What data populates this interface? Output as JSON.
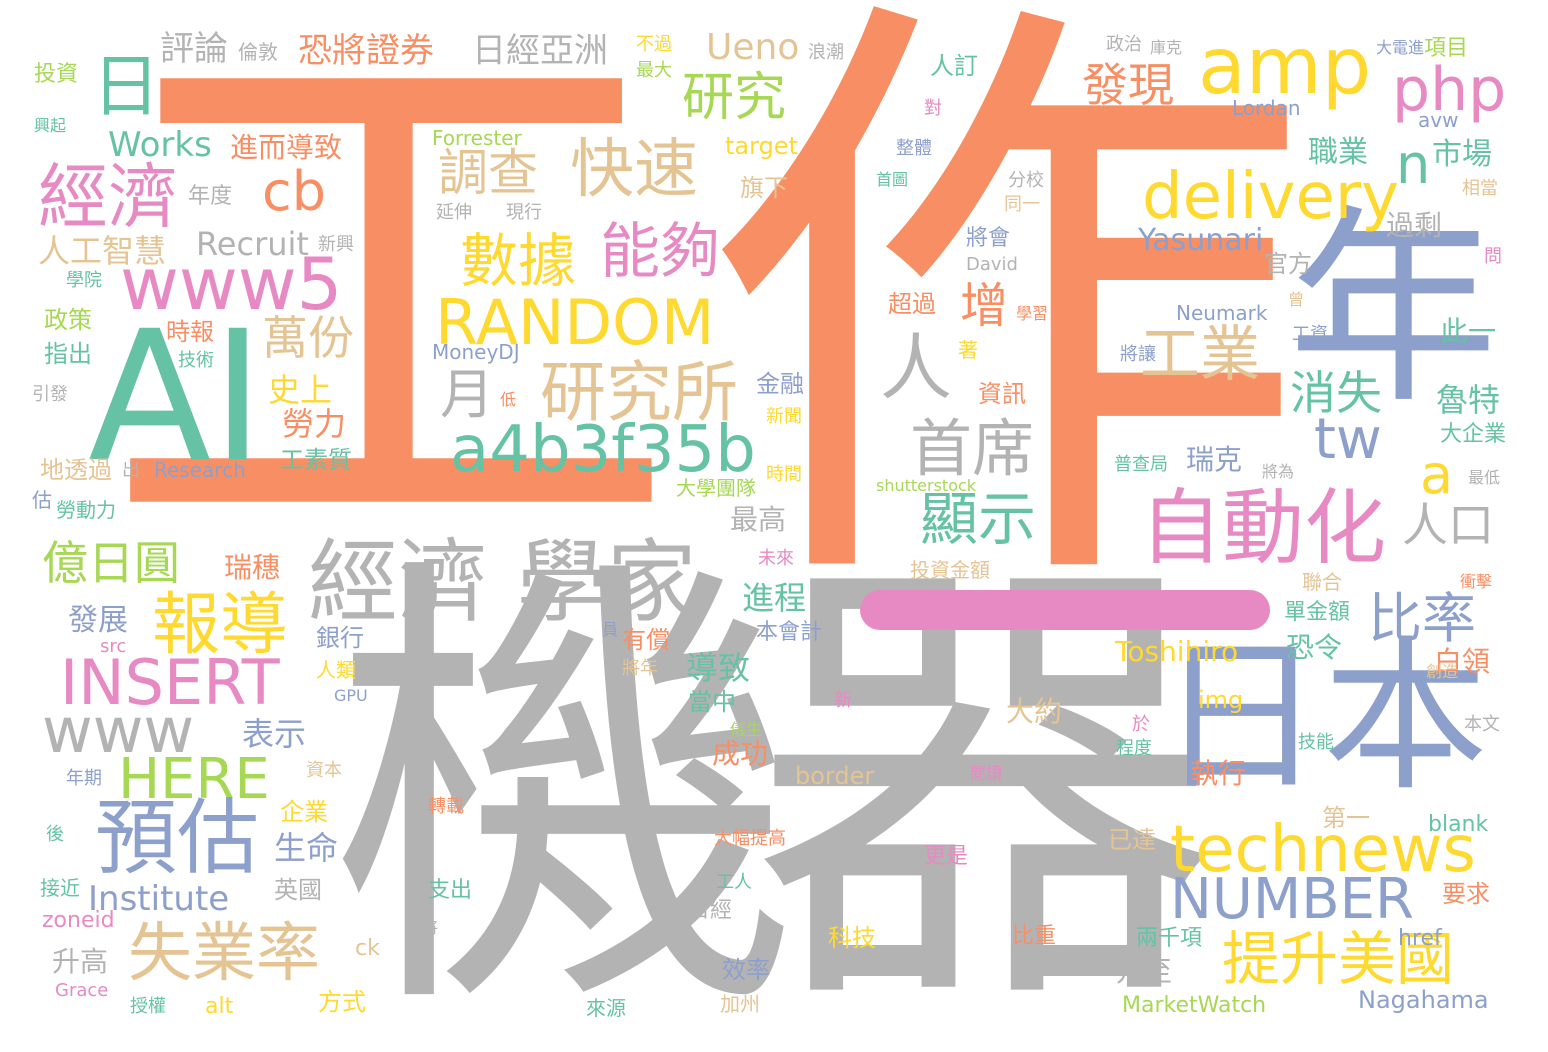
{
  "palette": {
    "orange": "#f88f64",
    "gray": "#b3b3b3",
    "blue": "#8da0cb",
    "green": "#66c2a5",
    "pink": "#e78ac3",
    "lime": "#a6d854",
    "yellow": "#ffd92f",
    "tan": "#e5c494"
  },
  "words": [
    {
      "text": "工",
      "color": "#f88f64"
    },
    {
      "text": "作",
      "color": "#f88f64"
    },
    {
      "text": "機",
      "color": "#b3b3b3"
    },
    {
      "text": "器",
      "color": "#b3b3b3"
    },
    {
      "text": "AI",
      "color": "#66c2a5"
    },
    {
      "text": "年",
      "color": "#8da0cb"
    },
    {
      "text": "日本",
      "color": "#8da0cb"
    },
    {
      "text": "amp",
      "color": "#ffd92f"
    },
    {
      "text": "php",
      "color": "#e78ac3"
    },
    {
      "text": "delivery",
      "color": "#ffd92f"
    },
    {
      "text": "經濟",
      "color": "#e78ac3"
    },
    {
      "text": "www5",
      "color": "#e78ac3"
    },
    {
      "text": "cb",
      "color": "#f88f64"
    },
    {
      "text": "日",
      "color": "#66c2a5"
    },
    {
      "text": "經濟 學家",
      "color": "#b3b3b3"
    },
    {
      "text": "研究所",
      "color": "#e5c494"
    },
    {
      "text": "a4b3f35b",
      "color": "#66c2a5"
    },
    {
      "text": "RANDOM",
      "color": "#ffd92f"
    },
    {
      "text": "自動化",
      "color": "#e78ac3"
    },
    {
      "text": "technews",
      "color": "#ffd92f"
    },
    {
      "text": "INSERT",
      "color": "#e78ac3"
    },
    {
      "text": "www",
      "color": "#b3b3b3"
    },
    {
      "text": "HERE",
      "color": "#a6d854"
    },
    {
      "text": "預估",
      "color": "#8da0cb"
    },
    {
      "text": "報導",
      "color": "#ffd92f"
    },
    {
      "text": "失業率",
      "color": "#e5c494"
    },
    {
      "text": "NUMBER",
      "color": "#8da0cb"
    },
    {
      "text": "提升美國",
      "color": "#ffd92f"
    },
    {
      "text": "快速",
      "color": "#e5c494"
    },
    {
      "text": "能夠",
      "color": "#e78ac3"
    },
    {
      "text": "數據",
      "color": "#ffd92f"
    },
    {
      "text": "研究",
      "color": "#a6d854"
    },
    {
      "text": "調查",
      "color": "#e5c494"
    },
    {
      "text": "首席",
      "color": "#b3b3b3"
    },
    {
      "text": "人",
      "color": "#b3b3b3"
    },
    {
      "text": "顯示",
      "color": "#66c2a5"
    },
    {
      "text": "工業",
      "color": "#e5c494"
    },
    {
      "text": "比率",
      "color": "#8da0cb"
    },
    {
      "text": "tw",
      "color": "#8da0cb"
    },
    {
      "text": "a",
      "color": "#ffd92f"
    },
    {
      "text": "n",
      "color": "#66c2a5"
    },
    {
      "text": "人口",
      "color": "#b3b3b3"
    },
    {
      "text": "發現",
      "color": "#f88f64"
    },
    {
      "text": "增",
      "color": "#f88f64"
    },
    {
      "text": "萬份",
      "color": "#e5c494"
    },
    {
      "text": "月",
      "color": "#b3b3b3"
    },
    {
      "text": "Ueno",
      "color": "#e5c494"
    },
    {
      "text": "消失",
      "color": "#66c2a5"
    },
    {
      "text": "億日圓",
      "color": "#a6d854"
    },
    {
      "text": "Institute",
      "color": "#8da0cb"
    },
    {
      "text": "Works",
      "color": "#66c2a5"
    },
    {
      "text": "Recruit",
      "color": "#b3b3b3"
    },
    {
      "text": "Yasunari",
      "color": "#8da0cb"
    },
    {
      "text": "Toshihiro",
      "color": "#ffd92f"
    },
    {
      "text": "Nagahama",
      "color": "#8da0cb"
    },
    {
      "text": "MarketWatch",
      "color": "#a6d854"
    },
    {
      "text": "Research",
      "color": "#8da0cb"
    },
    {
      "text": "MoneyDJ",
      "color": "#8da0cb"
    },
    {
      "text": "Forrester",
      "color": "#a6d854"
    },
    {
      "text": "target",
      "color": "#ffd92f"
    },
    {
      "text": "shutterstock",
      "color": "#a6d854"
    },
    {
      "text": "Neumark",
      "color": "#8da0cb"
    },
    {
      "text": "David",
      "color": "#b3b3b3"
    },
    {
      "text": "Lordan",
      "color": "#8da0cb"
    },
    {
      "text": "avw",
      "color": "#8da0cb"
    },
    {
      "text": "img",
      "color": "#ffd92f"
    },
    {
      "text": "href",
      "color": "#8da0cb"
    },
    {
      "text": "blank",
      "color": "#66c2a5"
    },
    {
      "text": "border",
      "color": "#e5c494"
    },
    {
      "text": "zoneid",
      "color": "#e78ac3"
    },
    {
      "text": "Grace",
      "color": "#e78ac3"
    },
    {
      "text": "alt",
      "color": "#ffd92f"
    },
    {
      "text": "ck",
      "color": "#e5c494"
    },
    {
      "text": "src",
      "color": "#e78ac3"
    },
    {
      "text": "GPU",
      "color": "#8da0cb"
    },
    {
      "text": "評論",
      "color": "#b3b3b3"
    },
    {
      "text": "恐將證券",
      "color": "#f88f64"
    },
    {
      "text": "日經亞洲",
      "color": "#b3b3b3"
    },
    {
      "text": "倫敦",
      "color": "#b3b3b3"
    },
    {
      "text": "投資",
      "color": "#a6d854"
    },
    {
      "text": "興起",
      "color": "#66c2a5"
    },
    {
      "text": "進而導致",
      "color": "#f88f64"
    },
    {
      "text": "年度",
      "color": "#b3b3b3"
    },
    {
      "text": "人工智慧",
      "color": "#e5c494"
    },
    {
      "text": "學院",
      "color": "#66c2a5"
    },
    {
      "text": "政策",
      "color": "#a6d854"
    },
    {
      "text": "指出",
      "color": "#66c2a5"
    },
    {
      "text": "時報",
      "color": "#f88f64"
    },
    {
      "text": "技術",
      "color": "#66c2a5"
    },
    {
      "text": "引發",
      "color": "#b3b3b3"
    },
    {
      "text": "史上",
      "color": "#ffd92f"
    },
    {
      "text": "勞力",
      "color": "#f88f64"
    },
    {
      "text": "工素質",
      "color": "#66c2a5"
    },
    {
      "text": "地透過",
      "color": "#e5c494"
    },
    {
      "text": "出",
      "color": "#b3b3b3"
    },
    {
      "text": "估",
      "color": "#8da0cb"
    },
    {
      "text": "勞動力",
      "color": "#66c2a5"
    },
    {
      "text": "瑞穗",
      "color": "#f88f64"
    },
    {
      "text": "發展",
      "color": "#8da0cb"
    },
    {
      "text": "銀行",
      "color": "#8da0cb"
    },
    {
      "text": "人類",
      "color": "#ffd92f"
    },
    {
      "text": "有償",
      "color": "#f88f64"
    },
    {
      "text": "將年",
      "color": "#e5c494"
    },
    {
      "text": "表示",
      "color": "#8da0cb"
    },
    {
      "text": "年期",
      "color": "#8da0cb"
    },
    {
      "text": "資本",
      "color": "#e5c494"
    },
    {
      "text": "企業",
      "color": "#ffd92f"
    },
    {
      "text": "生命",
      "color": "#8da0cb"
    },
    {
      "text": "後",
      "color": "#66c2a5"
    },
    {
      "text": "接近",
      "color": "#66c2a5"
    },
    {
      "text": "英國",
      "color": "#b3b3b3"
    },
    {
      "text": "升高",
      "color": "#b3b3b3"
    },
    {
      "text": "授權",
      "color": "#66c2a5"
    },
    {
      "text": "方式",
      "color": "#ffd92f"
    },
    {
      "text": "不過",
      "color": "#ffd92f"
    },
    {
      "text": "最大",
      "color": "#a6d854"
    },
    {
      "text": "浪潮",
      "color": "#b3b3b3"
    },
    {
      "text": "旗下",
      "color": "#e5c494"
    },
    {
      "text": "人訂",
      "color": "#66c2a5"
    },
    {
      "text": "對",
      "color": "#e78ac3"
    },
    {
      "text": "整體",
      "color": "#8da0cb"
    },
    {
      "text": "首圖",
      "color": "#66c2a5"
    },
    {
      "text": "延伸",
      "color": "#b3b3b3"
    },
    {
      "text": "現行",
      "color": "#b3b3b3"
    },
    {
      "text": "新興",
      "color": "#b3b3b3"
    },
    {
      "text": "將會",
      "color": "#8da0cb"
    },
    {
      "text": "超過",
      "color": "#f88f64"
    },
    {
      "text": "著",
      "color": "#ffd92f"
    },
    {
      "text": "資訊",
      "color": "#f88f64"
    },
    {
      "text": "低",
      "color": "#f88f64"
    },
    {
      "text": "金融",
      "color": "#8da0cb"
    },
    {
      "text": "新聞",
      "color": "#ffd92f"
    },
    {
      "text": "時間",
      "color": "#ffd92f"
    },
    {
      "text": "大學團隊",
      "color": "#a6d854"
    },
    {
      "text": "投資金額",
      "color": "#e5c494"
    },
    {
      "text": "未來",
      "color": "#e78ac3"
    },
    {
      "text": "最高",
      "color": "#b3b3b3"
    },
    {
      "text": "進程",
      "color": "#66c2a5"
    },
    {
      "text": "本會計",
      "color": "#8da0cb"
    },
    {
      "text": "員",
      "color": "#8da0cb"
    },
    {
      "text": "導致",
      "color": "#66c2a5"
    },
    {
      "text": "當中",
      "color": "#66c2a5"
    },
    {
      "text": "成功",
      "color": "#f88f64"
    },
    {
      "text": "大約",
      "color": "#e5c494"
    },
    {
      "text": "新",
      "color": "#e78ac3"
    },
    {
      "text": "儀生",
      "color": "#a6d854"
    },
    {
      "text": "轉載",
      "color": "#f88f64"
    },
    {
      "text": "閱讀",
      "color": "#e78ac3"
    },
    {
      "text": "大幅提高",
      "color": "#f88f64"
    },
    {
      "text": "更是",
      "color": "#e78ac3"
    },
    {
      "text": "支出",
      "color": "#66c2a5"
    },
    {
      "text": "工人",
      "color": "#66c2a5"
    },
    {
      "text": "將",
      "color": "#b3b3b3"
    },
    {
      "text": "科技",
      "color": "#ffd92f"
    },
    {
      "text": "比重",
      "color": "#f88f64"
    },
    {
      "text": "日經",
      "color": "#b3b3b3"
    },
    {
      "text": "效率",
      "color": "#8da0cb"
    },
    {
      "text": "加州",
      "color": "#e5c494"
    },
    {
      "text": "來源",
      "color": "#66c2a5"
    },
    {
      "text": "政治",
      "color": "#b3b3b3"
    },
    {
      "text": "庫克",
      "color": "#b3b3b3"
    },
    {
      "text": "大電進",
      "color": "#8da0cb"
    },
    {
      "text": "項目",
      "color": "#a6d854"
    },
    {
      "text": "職業",
      "color": "#66c2a5"
    },
    {
      "text": "市場",
      "color": "#66c2a5"
    },
    {
      "text": "分校",
      "color": "#b3b3b3"
    },
    {
      "text": "同一",
      "color": "#e5c494"
    },
    {
      "text": "相當",
      "color": "#e5c494"
    },
    {
      "text": "過剩",
      "color": "#b3b3b3"
    },
    {
      "text": "官方",
      "color": "#b3b3b3"
    },
    {
      "text": "問",
      "color": "#e78ac3"
    },
    {
      "text": "學習",
      "color": "#f88f64"
    },
    {
      "text": "曾",
      "color": "#e5c494"
    },
    {
      "text": "工資",
      "color": "#8da0cb"
    },
    {
      "text": "此一",
      "color": "#66c2a5"
    },
    {
      "text": "將讓",
      "color": "#8da0cb"
    },
    {
      "text": "魯特",
      "color": "#66c2a5"
    },
    {
      "text": "大企業",
      "color": "#66c2a5"
    },
    {
      "text": "瑞克",
      "color": "#8da0cb"
    },
    {
      "text": "普查局",
      "color": "#66c2a5"
    },
    {
      "text": "將為",
      "color": "#b3b3b3"
    },
    {
      "text": "最低",
      "color": "#b3b3b3"
    },
    {
      "text": "衝擊",
      "color": "#f88f64"
    },
    {
      "text": "聯合",
      "color": "#e5c494"
    },
    {
      "text": "單金額",
      "color": "#66c2a5"
    },
    {
      "text": "恐令",
      "color": "#66c2a5"
    },
    {
      "text": "白領",
      "color": "#f88f64"
    },
    {
      "text": "創造",
      "color": "#e5c494"
    },
    {
      "text": "於",
      "color": "#e78ac3"
    },
    {
      "text": "程度",
      "color": "#66c2a5"
    },
    {
      "text": "技能",
      "color": "#66c2a5"
    },
    {
      "text": "本文",
      "color": "#b3b3b3"
    },
    {
      "text": "執行",
      "color": "#f88f64"
    },
    {
      "text": "分析",
      "color": "#b3b3b3"
    },
    {
      "text": "已達",
      "color": "#e5c494"
    },
    {
      "text": "第一",
      "color": "#e5c494"
    },
    {
      "text": "要求",
      "color": "#f88f64"
    },
    {
      "text": "兩千項",
      "color": "#66c2a5"
    },
    {
      "text": "升至",
      "color": "#b3b3b3"
    }
  ]
}
